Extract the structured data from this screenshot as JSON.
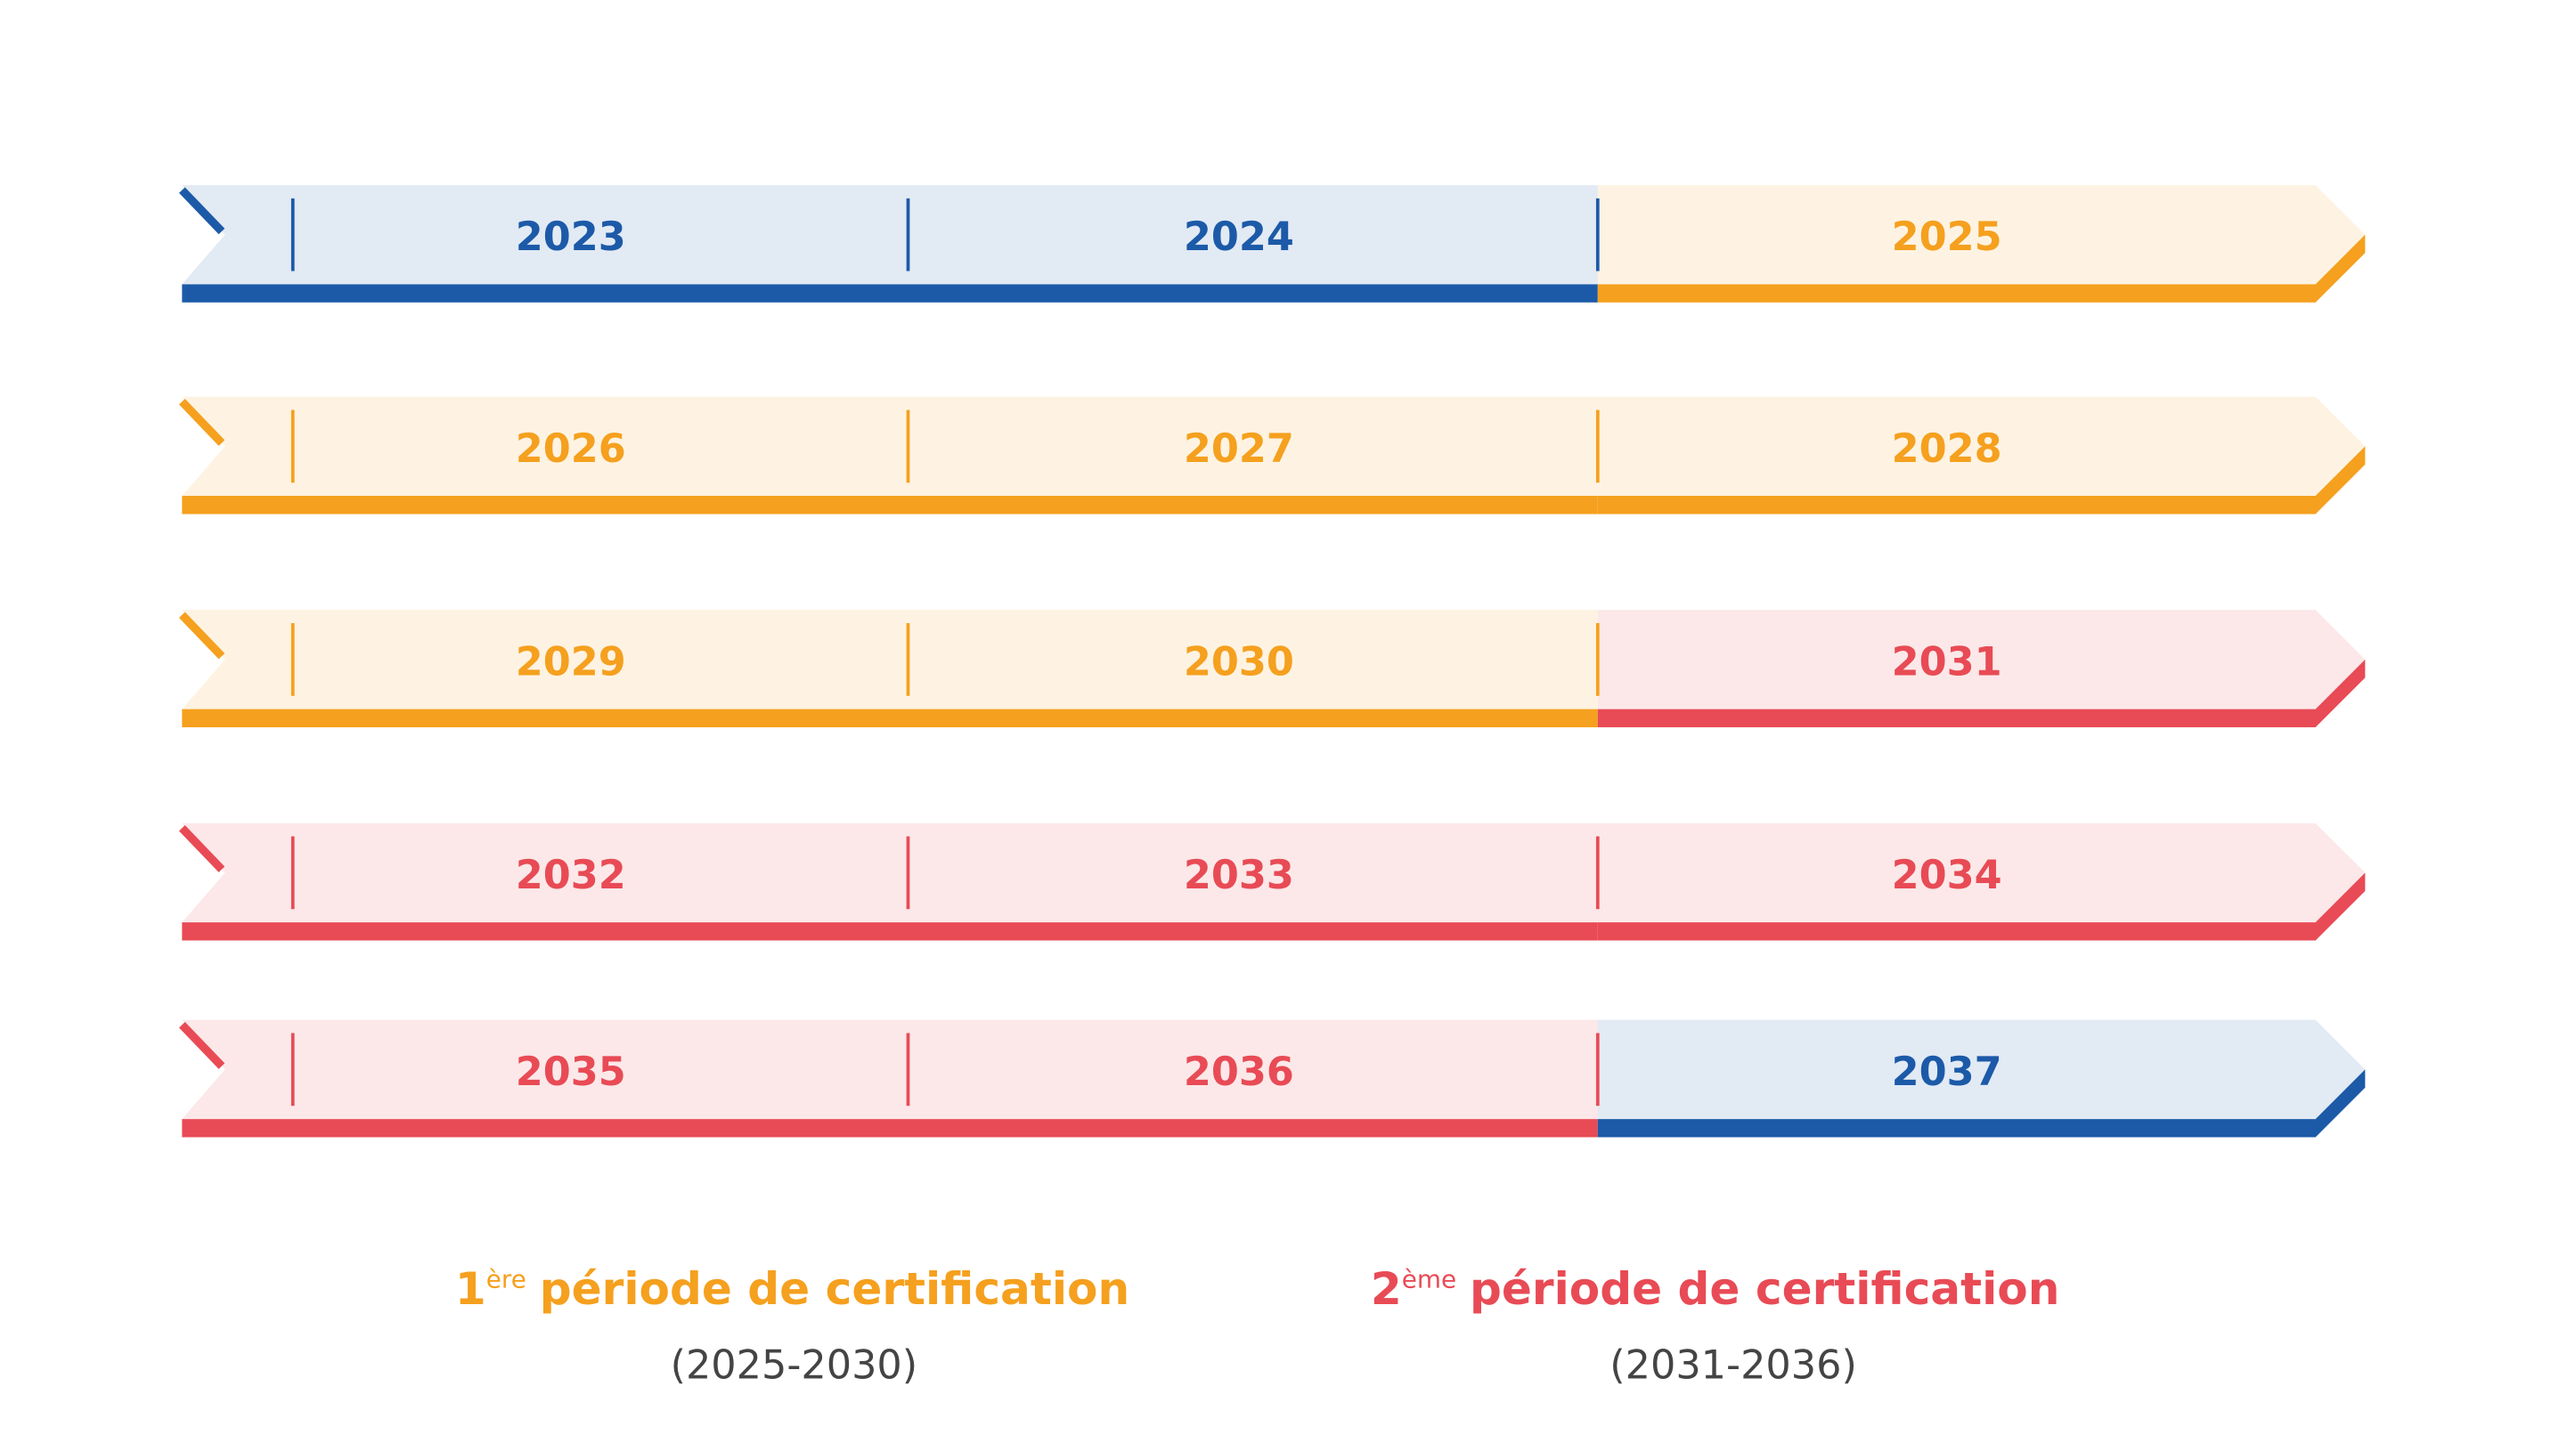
{
  "rows": [
    {
      "segments": [
        {
          "label": "2023",
          "color": "#1c5aa8"
        },
        {
          "label": "2024",
          "color": "#1c5aa8"
        },
        {
          "label": "2025",
          "color": "#f5a01e"
        }
      ]
    },
    {
      "segments": [
        {
          "label": "2026",
          "color": "#f5a01e"
        },
        {
          "label": "2027",
          "color": "#f5a01e"
        },
        {
          "label": "2028",
          "color": "#f5a01e"
        }
      ]
    },
    {
      "segments": [
        {
          "label": "2029",
          "color": "#f5a01e"
        },
        {
          "label": "2030",
          "color": "#f5a01e"
        },
        {
          "label": "2031",
          "color": "#e84b55"
        }
      ]
    },
    {
      "segments": [
        {
          "label": "2032",
          "color": "#e84b55"
        },
        {
          "label": "2033",
          "color": "#e84b55"
        },
        {
          "label": "2034",
          "color": "#e84b55"
        }
      ]
    },
    {
      "segments": [
        {
          "label": "2035",
          "color": "#e84b55"
        },
        {
          "label": "2036",
          "color": "#e84b55"
        },
        {
          "label": "2037",
          "color": "#1c5aa8"
        }
      ]
    }
  ],
  "legend": [
    {
      "number": "1",
      "sup": "ère",
      "text": "période de certification",
      "range": "(2025-2030)",
      "color": "#f5a01e"
    },
    {
      "number": "2",
      "sup": "ème",
      "text": "période de certification",
      "range": "(2031-2036)",
      "color": "#e84b55"
    }
  ]
}
